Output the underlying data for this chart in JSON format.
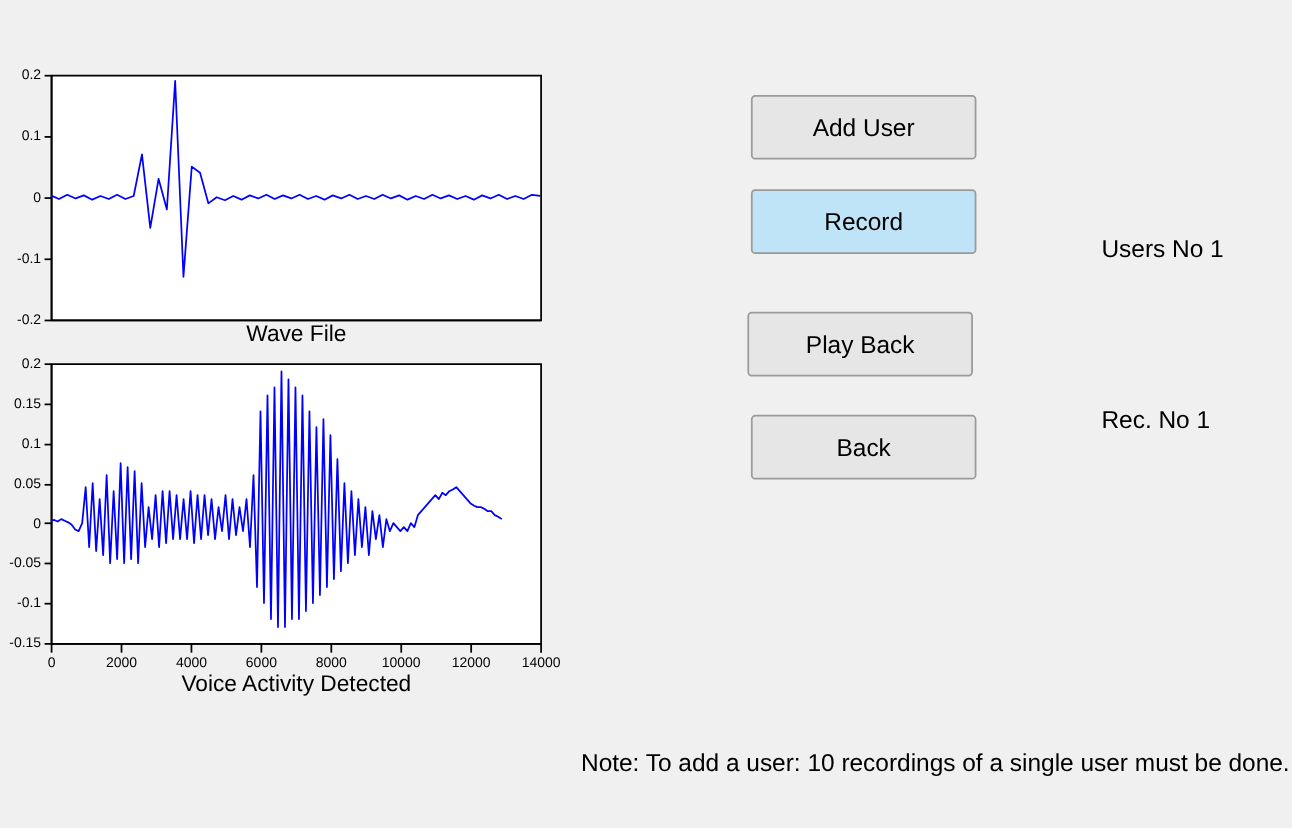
{
  "chart_data": [
    {
      "type": "line",
      "xlabel": "Wave File",
      "tick_labels": "y",
      "ylim": [
        -0.2,
        0.2
      ],
      "yticks": [
        -0.2,
        -0.1,
        0,
        0.1,
        0.2
      ],
      "grid": false,
      "categories": [
        null,
        null,
        null,
        null,
        null,
        null,
        null,
        null,
        null,
        null,
        null,
        null,
        null,
        null,
        null,
        null,
        null,
        null,
        null,
        null,
        null,
        null,
        null,
        null,
        null,
        null,
        null,
        null,
        null,
        null,
        null,
        null,
        null,
        null,
        null,
        null,
        null,
        null,
        null,
        null,
        null,
        null,
        null,
        null,
        null,
        null,
        null,
        null,
        null,
        null,
        null,
        null,
        null,
        null,
        null,
        null,
        null,
        null,
        null,
        null
      ],
      "series": [
        {
          "color": "#0000ff",
          "values": [
            0.003,
            -0.003,
            0.004,
            -0.002,
            0.003,
            -0.004,
            0.002,
            -0.003,
            0.004,
            -0.003,
            0.002,
            0.07,
            -0.05,
            0.03,
            -0.02,
            0.19,
            -0.13,
            0.05,
            0.04,
            -0.01,
            0.0,
            -0.005,
            0.002,
            -0.004,
            0.003,
            -0.002,
            0.004,
            -0.003,
            0.003,
            -0.002,
            0.004,
            -0.003,
            0.002,
            -0.004,
            0.003,
            -0.002,
            0.004,
            -0.003,
            0.002,
            -0.003,
            0.004,
            -0.002,
            0.003,
            -0.004,
            0.002,
            -0.003,
            0.004,
            -0.002,
            0.003,
            -0.003,
            0.002,
            -0.004,
            0.003,
            -0.002,
            0.004,
            -0.003,
            0.002,
            -0.003,
            0.004,
            0.002
          ]
        }
      ]
    },
    {
      "type": "line",
      "xlabel": "Voice Activity Detected",
      "xlim": [
        0,
        14000
      ],
      "xticks": [
        0,
        2000,
        4000,
        6000,
        8000,
        10000,
        12000,
        14000
      ],
      "ylim": [
        -0.15,
        0.2
      ],
      "yticks": [
        -0.15,
        -0.1,
        -0.05,
        0,
        0.05,
        0.1,
        0.15,
        0.2
      ],
      "grid": false,
      "x": [
        0,
        100,
        200,
        300,
        400,
        500,
        600,
        700,
        800,
        900,
        1000,
        1100,
        1200,
        1300,
        1400,
        1500,
        1600,
        1700,
        1800,
        1900,
        2000,
        2100,
        2200,
        2300,
        2400,
        2500,
        2600,
        2700,
        2800,
        2900,
        3000,
        3100,
        3200,
        3300,
        3400,
        3500,
        3600,
        3700,
        3800,
        3900,
        4000,
        4100,
        4200,
        4300,
        4400,
        4500,
        4600,
        4700,
        4800,
        4900,
        5000,
        5100,
        5200,
        5300,
        5400,
        5500,
        5600,
        5700,
        5800,
        5900,
        6000,
        6100,
        6200,
        6300,
        6400,
        6500,
        6600,
        6700,
        6800,
        6900,
        7000,
        7100,
        7200,
        7300,
        7400,
        7500,
        7600,
        7700,
        7800,
        7900,
        8000,
        8100,
        8200,
        8300,
        8400,
        8500,
        8600,
        8700,
        8800,
        8900,
        9000,
        9100,
        9200,
        9300,
        9400,
        9500,
        9600,
        9700,
        9800,
        9900,
        10000,
        10100,
        10200,
        10300,
        10400,
        10500,
        10600,
        10700,
        10800,
        10900,
        11000,
        11100,
        11200,
        11300,
        11400,
        11500,
        11600,
        11700,
        11800,
        11900,
        12000,
        12100,
        12200,
        12300,
        12400,
        12500,
        12600,
        12700,
        12800,
        12900
      ],
      "series": [
        {
          "color": "#0000ff",
          "values": [
            0.003,
            0.004,
            0.002,
            0.005,
            0.003,
            0.001,
            -0.002,
            -0.008,
            -0.01,
            0.0,
            0.045,
            -0.03,
            0.05,
            -0.035,
            0.03,
            -0.04,
            0.06,
            -0.05,
            0.04,
            -0.045,
            0.075,
            -0.05,
            0.07,
            -0.045,
            0.065,
            -0.05,
            0.05,
            -0.03,
            0.02,
            -0.02,
            0.035,
            -0.03,
            0.04,
            -0.025,
            0.04,
            -0.02,
            0.035,
            -0.02,
            0.03,
            -0.02,
            0.04,
            -0.025,
            0.035,
            -0.02,
            0.035,
            -0.015,
            0.03,
            -0.02,
            0.02,
            -0.01,
            0.035,
            -0.02,
            0.03,
            -0.015,
            0.02,
            -0.01,
            0.03,
            -0.03,
            0.06,
            -0.08,
            0.14,
            -0.1,
            0.16,
            -0.12,
            0.17,
            -0.13,
            0.19,
            -0.13,
            0.18,
            -0.12,
            0.17,
            -0.12,
            0.16,
            -0.11,
            0.14,
            -0.1,
            0.12,
            -0.09,
            0.13,
            -0.08,
            0.11,
            -0.07,
            0.08,
            -0.06,
            0.05,
            -0.05,
            0.04,
            -0.04,
            0.03,
            -0.03,
            0.02,
            -0.04,
            0.015,
            -0.02,
            0.01,
            -0.03,
            0.005,
            -0.01,
            0.0,
            -0.005,
            -0.01,
            -0.005,
            -0.01,
            0.0,
            -0.005,
            0.01,
            0.015,
            0.02,
            0.025,
            0.03,
            0.035,
            0.03,
            0.038,
            0.035,
            0.04,
            0.042,
            0.045,
            0.04,
            0.035,
            0.03,
            0.025,
            0.022,
            0.02,
            0.02,
            0.018,
            0.015,
            0.015,
            0.01,
            0.008,
            0.005
          ]
        }
      ]
    },
    {
      "type": "other",
      "annotations": [
        "Add User",
        "Record",
        "Play Back",
        "Back",
        "Users No 1",
        "Rec. No 1",
        "Note: To add a user: 10 recordings of a single user must be done."
      ]
    }
  ]
}
